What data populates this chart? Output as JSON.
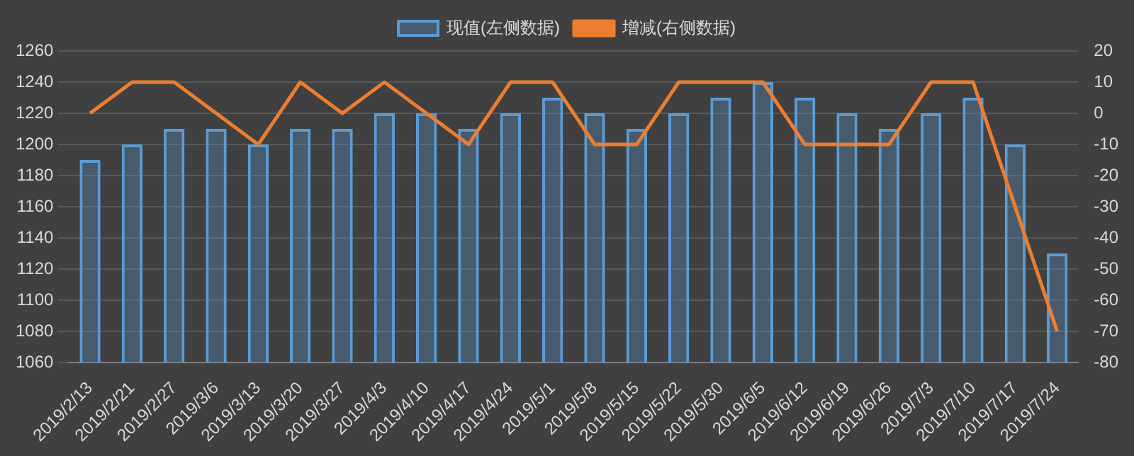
{
  "chart_data": {
    "type": "bar",
    "categories": [
      "2019/2/13",
      "2019/2/21",
      "2019/2/27",
      "2019/3/6",
      "2019/3/13",
      "2019/3/20",
      "2019/3/27",
      "2019/4/3",
      "2019/4/10",
      "2019/4/17",
      "2019/4/24",
      "2019/5/1",
      "2019/5/8",
      "2019/5/15",
      "2019/5/22",
      "2019/5/30",
      "2019/6/5",
      "2019/6/12",
      "2019/6/19",
      "2019/6/26",
      "2019/7/3",
      "2019/7/10",
      "2019/7/17",
      "2019/7/24"
    ],
    "series": [
      {
        "name": "现值(左侧数据)",
        "color": "#5b9bd5",
        "values": [
          1190,
          1200,
          1210,
          1210,
          1200,
          1210,
          1210,
          1220,
          1220,
          1210,
          1220,
          1230,
          1220,
          1210,
          1220,
          1230,
          1240,
          1230,
          1220,
          1210,
          1220,
          1230,
          1200,
          1130
        ]
      },
      {
        "name": "增减(右侧数据)",
        "type": "line",
        "axis": "y2",
        "color": "#ed7d31",
        "values": [
          0,
          10,
          10,
          0,
          -10,
          10,
          0,
          10,
          0,
          -10,
          10,
          10,
          -10,
          -10,
          10,
          10,
          10,
          -10,
          -10,
          -10,
          10,
          10,
          -30,
          -70
        ]
      }
    ],
    "ylim": [
      1060,
      1260
    ],
    "yticks": [
      1060,
      1080,
      1100,
      1120,
      1140,
      1160,
      1180,
      1200,
      1220,
      1240,
      1260
    ],
    "y2lim": [
      -80,
      20
    ],
    "y2ticks": [
      -80,
      -70,
      -60,
      -50,
      -40,
      -30,
      -20,
      -10,
      0,
      10,
      20
    ],
    "grid": "y",
    "legend": "top",
    "marker": "none",
    "line_style": "solid"
  }
}
